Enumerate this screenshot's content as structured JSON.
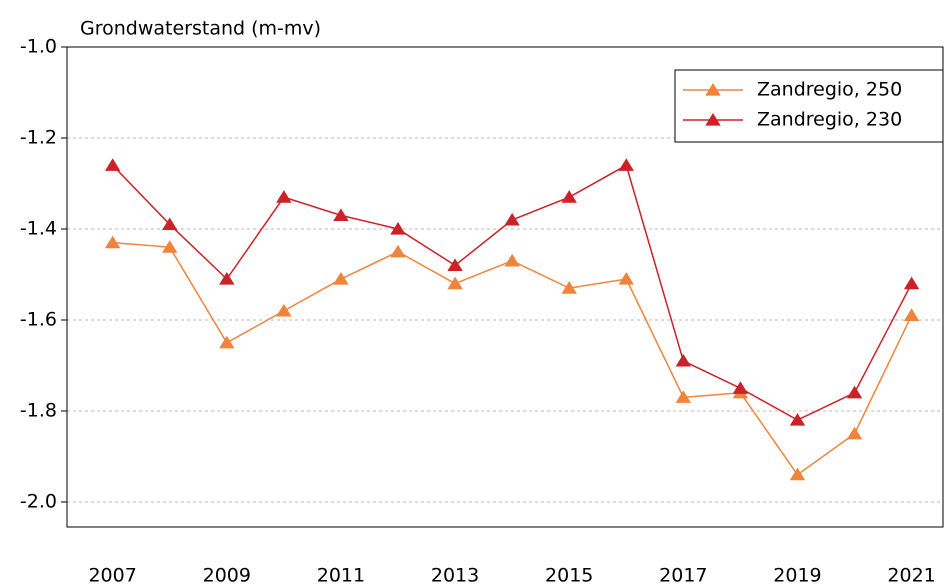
{
  "chart_data": {
    "type": "line",
    "title": "Grondwaterstand (m-mv)",
    "x": [
      2007,
      2008,
      2009,
      2010,
      2011,
      2012,
      2013,
      2014,
      2015,
      2016,
      2017,
      2018,
      2019,
      2020,
      2021
    ],
    "series": [
      {
        "name": "Zandregio, 250",
        "color": "#f0843c",
        "values": [
          -1.43,
          -1.44,
          -1.65,
          -1.58,
          -1.51,
          -1.45,
          -1.52,
          -1.47,
          -1.53,
          -1.51,
          -1.77,
          -1.76,
          -1.94,
          -1.85,
          -1.59
        ]
      },
      {
        "name": "Zandregio, 230",
        "color": "#cc2127",
        "values": [
          -1.26,
          -1.39,
          -1.51,
          -1.33,
          -1.37,
          -1.4,
          -1.48,
          -1.38,
          -1.33,
          -1.26,
          -1.69,
          -1.75,
          -1.82,
          -1.76,
          -1.52
        ]
      }
    ],
    "xlim": [
      2006.2,
      2021.55
    ],
    "xticks": [
      2007,
      2009,
      2011,
      2013,
      2015,
      2017,
      2019,
      2021
    ],
    "ylim": [
      -2.055,
      -1.0
    ],
    "yticks": [
      {
        "value": -2.0,
        "label": "-2.0"
      },
      -1.8,
      -1.6,
      -1.4,
      -1.2,
      {
        "value": -1.0,
        "label": "-1.0"
      }
    ],
    "grid": true,
    "legend": "top-right"
  }
}
